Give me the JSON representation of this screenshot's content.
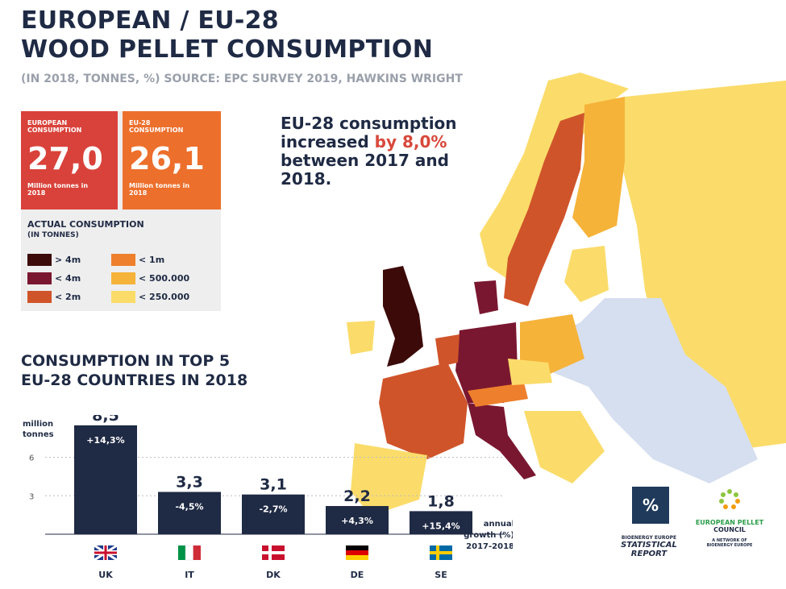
{
  "title_line1": "EUROPEAN / EU-28",
  "title_line2": "WOOD PELLET CONSUMPTION",
  "subtitle": "(IN 2018, TONNES, %) SOURCE: EPC SURVEY 2019, HAWKINS WRIGHT",
  "kpis": {
    "european": {
      "label": "EUROPEAN CONSUMPTION",
      "value": "27,0",
      "unit": "Million tonnes in 2018",
      "color": "#d9423a"
    },
    "eu28": {
      "label": "EU-28 CONSUMPTION",
      "value": "26,1",
      "unit": "Million tonnes in 2018",
      "color": "#ed6f2c"
    }
  },
  "increase": {
    "line1": "EU-28 consumption",
    "line2_pre": "increased ",
    "line2_hl": "by 8,0%",
    "line3": "between 2017 and",
    "line4": "2018."
  },
  "legend": {
    "title": "ACTUAL CONSUMPTION",
    "sub": "(IN TONNES)",
    "items": [
      {
        "label": "> 4m",
        "color": "#3d0a0a"
      },
      {
        "label": "< 4m",
        "color": "#7a1730"
      },
      {
        "label": "< 2m",
        "color": "#d0542a"
      },
      {
        "label": "< 1m",
        "color": "#ee7f2c"
      },
      {
        "label": "< 500.000",
        "color": "#f5b33a"
      },
      {
        "label": "< 250.000",
        "color": "#fbdc6a"
      }
    ]
  },
  "top5_title_line1": "CONSUMPTION IN TOP 5",
  "top5_title_line2": "EU-28 COUNTRIES IN 2018",
  "chart_data": {
    "type": "bar",
    "categories": [
      "UK",
      "IT",
      "DK",
      "DE",
      "SE"
    ],
    "values": [
      8.5,
      3.3,
      3.1,
      2.2,
      1.8
    ],
    "value_labels": [
      "8,5",
      "3,3",
      "3,1",
      "2,2",
      "1,8"
    ],
    "growth_labels": [
      "+14,3%",
      "-4,5%",
      "-2,7%",
      "+4,3%",
      "+15,4%"
    ],
    "ylabel_line1": "million",
    "ylabel_line2": "tonnes",
    "yticks": [
      3,
      6
    ],
    "ylim": [
      0,
      9.5
    ],
    "bar_color": "#1f2a44",
    "growth_note_line1": "annual",
    "growth_note_line2": "growth (%)",
    "growth_note_line3": "2017-2018"
  },
  "logos": {
    "bioenergy_line1": "BIOENERGY EUROPE",
    "bioenergy_line2": "STATISTICAL",
    "bioenergy_line3": "REPORT",
    "epc_line1": "EUROPEAN PELLET",
    "epc_line2": "COUNCIL",
    "epc_line3": "A NETWORK OF",
    "epc_line4": "BIOENERGY EUROPE"
  }
}
